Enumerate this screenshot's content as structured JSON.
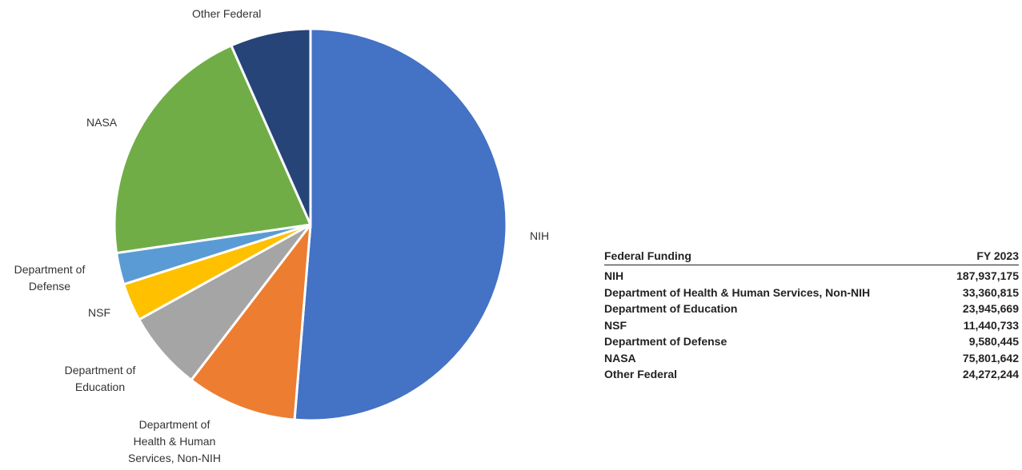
{
  "chart_data": {
    "type": "pie",
    "title": "",
    "start_angle_deg": 0,
    "direction": "clockwise",
    "slices": [
      {
        "label": "NIH",
        "value": 187937175,
        "color": "#4472C4"
      },
      {
        "label": "Department of Health & Human Services, Non-NIH",
        "value": 33360815,
        "color": "#ED7D31"
      },
      {
        "label": "Department of Education",
        "value": 23945669,
        "color": "#A5A5A5"
      },
      {
        "label": "NSF",
        "value": 11440733,
        "color": "#FFC000"
      },
      {
        "label": "Department of Defense",
        "value": 9580445,
        "color": "#5B9BD5"
      },
      {
        "label": "NASA",
        "value": 75801642,
        "color": "#70AD47"
      },
      {
        "label": "Other Federal",
        "value": 24272244,
        "color": "#264478"
      }
    ]
  },
  "pie_labels": [
    "NIH",
    "Department of\nHealth & Human\nServices, Non-NIH",
    "Department of\nEducation",
    "NSF",
    "Department of\nDefense",
    "NASA",
    "Other Federal"
  ],
  "table": {
    "headers": [
      "Federal Funding",
      "FY 2023"
    ],
    "rows": [
      [
        "NIH",
        "187,937,175"
      ],
      [
        "Department of Health & Human Services, Non-NIH",
        "33,360,815"
      ],
      [
        "Department of Education",
        "23,945,669"
      ],
      [
        "NSF",
        "11,440,733"
      ],
      [
        "Department of Defense",
        "9,580,445"
      ],
      [
        "NASA",
        "75,801,642"
      ],
      [
        "Other Federal",
        "24,272,244"
      ]
    ]
  }
}
